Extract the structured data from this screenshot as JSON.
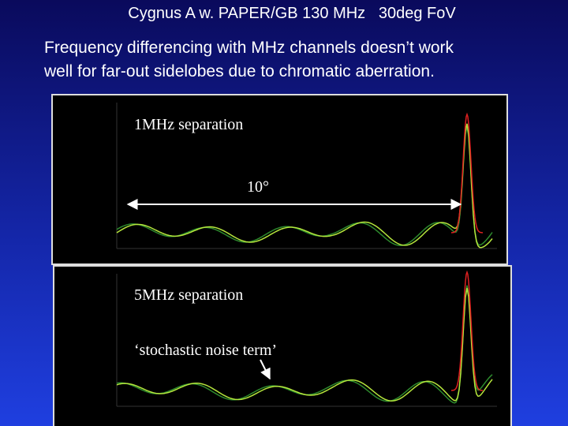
{
  "title": "Cygnus A w. PAPER/GB 130 MHz   30deg FoV",
  "body": [
    "Frequency differencing with MHz channels doesn’t work",
    "well for far-out sidelobes due to chromatic aberration."
  ],
  "panels": [
    {
      "label": "1MHz separation",
      "annotation": "10°"
    },
    {
      "label": "5MHz separation",
      "annotation": "‘stochastic noise term’"
    }
  ]
}
